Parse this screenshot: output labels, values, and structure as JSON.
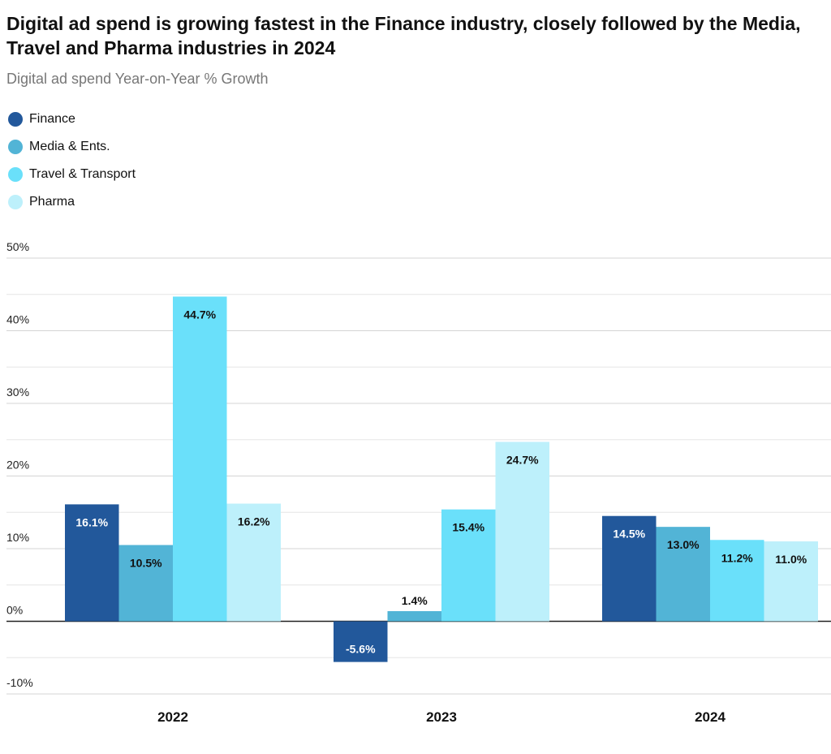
{
  "title": "Digital ad spend is growing fastest in the Finance industry, closely followed by the Media, Travel and Pharma industries in 2024",
  "subtitle": "Digital ad spend Year-on-Year % Growth",
  "legend": [
    {
      "label": "Finance",
      "color": "#22589b"
    },
    {
      "label": "Media & Ents.",
      "color": "#52b4d6"
    },
    {
      "label": "Travel & Transport",
      "color": "#6ae0fa"
    },
    {
      "label": "Pharma",
      "color": "#bdf0fb"
    }
  ],
  "chart_data": {
    "type": "bar",
    "categories": [
      "2022",
      "2023",
      "2024"
    ],
    "series": [
      {
        "name": "Finance",
        "color": "#22589b",
        "values": [
          16.1,
          -5.6,
          14.5
        ],
        "labels": [
          "16.1%",
          "-5.6%",
          "14.5%"
        ]
      },
      {
        "name": "Media & Ents.",
        "color": "#52b4d6",
        "values": [
          10.5,
          1.4,
          13.0
        ],
        "labels": [
          "10.5%",
          "1.4%",
          "13.0%"
        ]
      },
      {
        "name": "Travel & Transport",
        "color": "#6ae0fa",
        "values": [
          44.7,
          15.4,
          11.2
        ],
        "labels": [
          "44.7%",
          "15.4%",
          "11.2%"
        ]
      },
      {
        "name": "Pharma",
        "color": "#bdf0fb",
        "values": [
          16.2,
          24.7,
          11.0
        ],
        "labels": [
          "16.2%",
          "24.7%",
          "11.0%"
        ]
      }
    ],
    "yticks": [
      50,
      40,
      30,
      20,
      10,
      0,
      -10
    ],
    "ytick_labels": [
      "50%",
      "40%",
      "30%",
      "20%",
      "10%",
      "0%",
      "-10%"
    ],
    "ylim": [
      -10,
      50
    ],
    "grid": true,
    "legend_position": "top-left"
  }
}
